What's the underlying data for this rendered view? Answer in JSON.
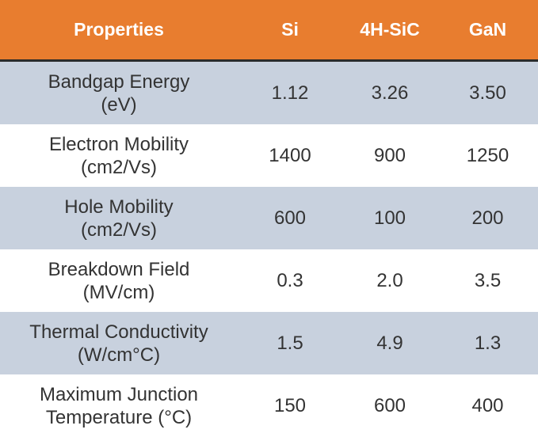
{
  "colors": {
    "header_bg": "#E87D2F",
    "header_text": "#ffffff",
    "shaded_row": "#C8D1DE",
    "plain_row": "#ffffff",
    "text": "#333333"
  },
  "header": {
    "properties": "Properties",
    "si": "Si",
    "sic": "4H-SiC",
    "gan": "GaN"
  },
  "rows": [
    {
      "property_line1": "Bandgap Energy",
      "property_line2": "(eV)",
      "si": "1.12",
      "sic": "3.26",
      "gan": "3.50"
    },
    {
      "property_line1": "Electron Mobility",
      "property_line2": "(cm2/Vs)",
      "si": "1400",
      "sic": "900",
      "gan": "1250"
    },
    {
      "property_line1": "Hole Mobility",
      "property_line2": "(cm2/Vs)",
      "si": "600",
      "sic": "100",
      "gan": "200"
    },
    {
      "property_line1": "Breakdown Field",
      "property_line2": "(MV/cm)",
      "si": "0.3",
      "sic": "2.0",
      "gan": "3.5"
    },
    {
      "property_line1": "Thermal Conductivity",
      "property_line2": "(W/cm°C)",
      "si": "1.5",
      "sic": "4.9",
      "gan": "1.3"
    },
    {
      "property_line1": "Maximum Junction",
      "property_line2": "Temperature (°C)",
      "si": "150",
      "sic": "600",
      "gan": "400"
    }
  ]
}
